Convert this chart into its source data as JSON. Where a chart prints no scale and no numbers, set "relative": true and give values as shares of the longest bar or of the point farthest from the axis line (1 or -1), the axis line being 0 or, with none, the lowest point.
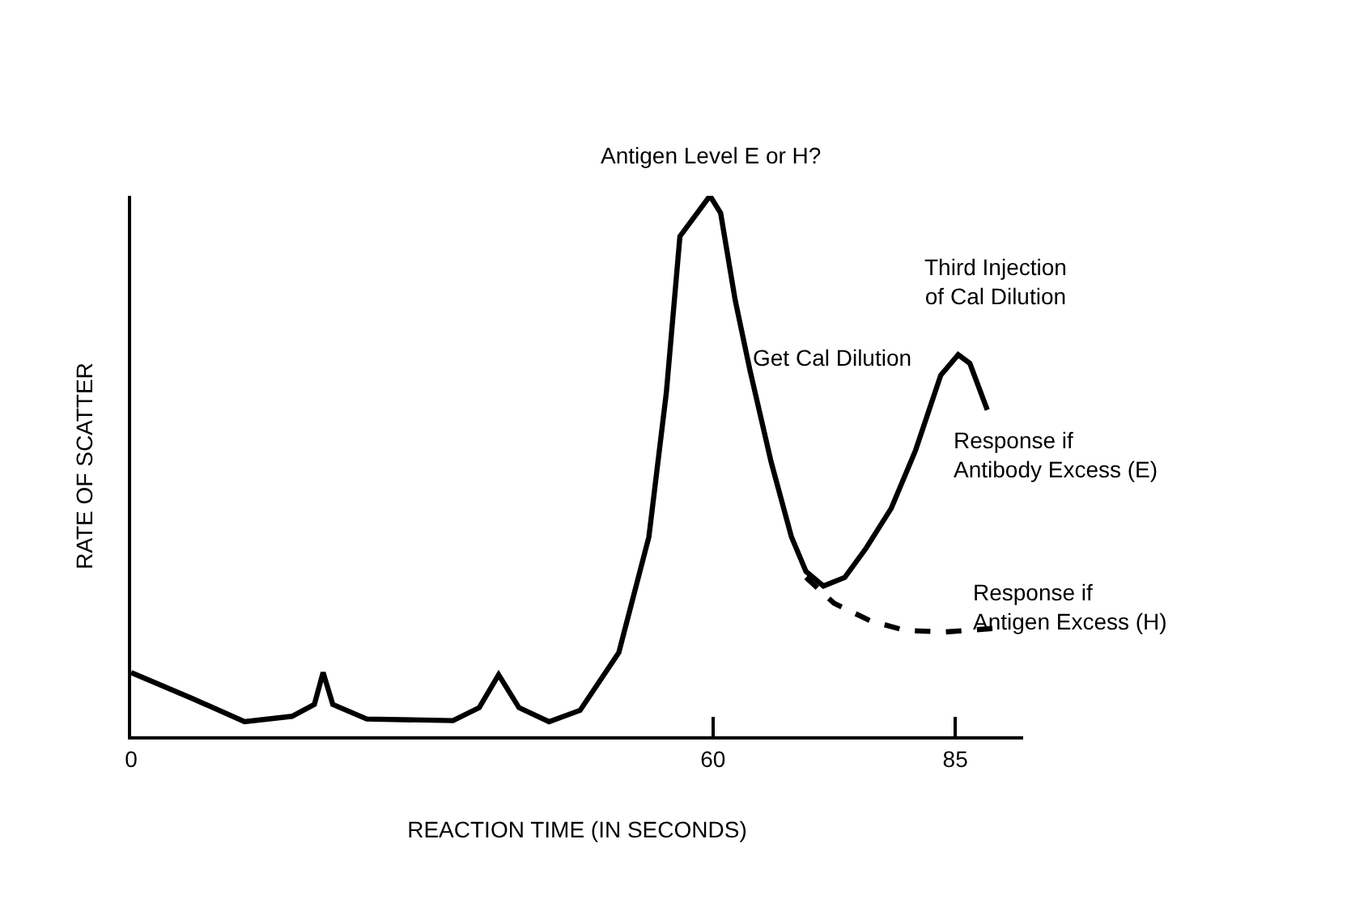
{
  "chart_data": {
    "type": "line",
    "relative": true,
    "xlabel": "REACTION TIME (IN SECONDS)",
    "ylabel": "RATE OF SCATTER",
    "xlim": [
      0,
      92
    ],
    "xticks": [
      0,
      60,
      85
    ],
    "grid": false,
    "marker": "none",
    "annotations": [
      "Antigen Level E or H?",
      "Get Cal Dilution",
      "Third Injection\nof Cal Dilution",
      "Response if\nAntibody Excess (E)",
      "Response if\nAntigen Excess (H)"
    ],
    "series": [
      {
        "color": "#000000",
        "line_style": "solid",
        "x": [
          0,
          6.3,
          11.7,
          16.6,
          18.9,
          19.8,
          20.8,
          24.3,
          33.2,
          35.9,
          37.9,
          40.0,
          43.1,
          46.3,
          50.3,
          53.4,
          55.2,
          56.6,
          59.7,
          60.8,
          62.3,
          63.8,
          66.0,
          68.1,
          69.6,
          71.4,
          73.6,
          75.8,
          78.4,
          80.9,
          83.5,
          85.3,
          86.5,
          88.3
        ],
        "values": [
          0.118,
          0.07,
          0.027,
          0.037,
          0.059,
          0.118,
          0.059,
          0.032,
          0.029,
          0.053,
          0.114,
          0.053,
          0.027,
          0.048,
          0.155,
          0.369,
          0.636,
          0.925,
          1,
          0.968,
          0.807,
          0.679,
          0.508,
          0.369,
          0.305,
          0.278,
          0.294,
          0.348,
          0.422,
          0.529,
          0.668,
          0.706,
          0.69,
          0.604
        ]
      },
      {
        "color": "#000000",
        "line_style": "dashed",
        "x": [
          69.6,
          72.5,
          76.2,
          79.8,
          83.9,
          89.3
        ],
        "values": [
          0.294,
          0.246,
          0.214,
          0.196,
          0.193,
          0.2
        ]
      }
    ]
  }
}
